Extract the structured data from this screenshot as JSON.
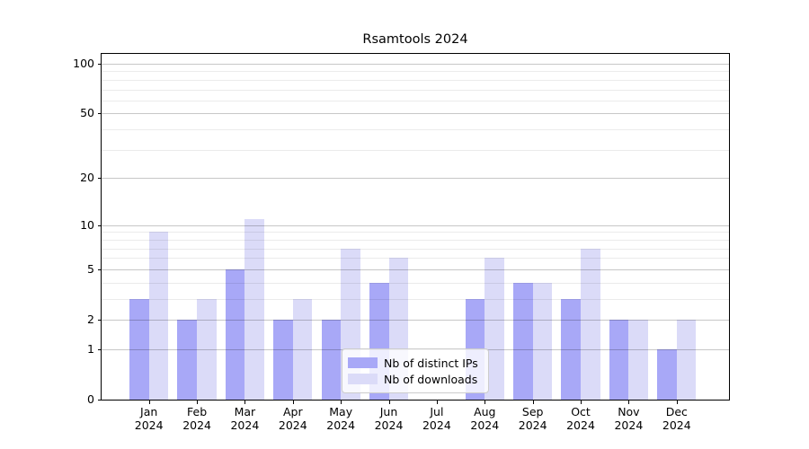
{
  "chart_data": {
    "type": "bar",
    "title": "Rsamtools 2024",
    "categories": [
      "Jan",
      "Feb",
      "Mar",
      "Apr",
      "May",
      "Jun",
      "Jul",
      "Aug",
      "Sep",
      "Oct",
      "Nov",
      "Dec"
    ],
    "year_label": "2024",
    "series": [
      {
        "name": "Nb of distinct IPs",
        "color": "#a8a8f7",
        "values": [
          3,
          2,
          5,
          2,
          2,
          4,
          0,
          3,
          4,
          3,
          2,
          1
        ]
      },
      {
        "name": "Nb of downloads",
        "color": "#dbdbf8",
        "values": [
          9,
          3,
          11,
          3,
          7,
          6,
          0,
          6,
          4,
          7,
          2,
          2
        ]
      }
    ],
    "xlabel": "",
    "ylabel": "",
    "yscale": "log1p",
    "ylim": [
      0,
      115
    ],
    "yticks": [
      0,
      1,
      2,
      5,
      10,
      20,
      50,
      100
    ],
    "minor_gridlines": [
      3,
      4,
      6,
      7,
      8,
      9,
      30,
      40,
      60,
      70,
      80,
      90
    ],
    "grid": "on",
    "legend_position": "lower-center"
  },
  "colors": {
    "distinct_ips_bar": "#a8a8f7",
    "downloads_bar": "#dbdbf8",
    "axis": "#000000",
    "legend_border": "#cccccc"
  }
}
